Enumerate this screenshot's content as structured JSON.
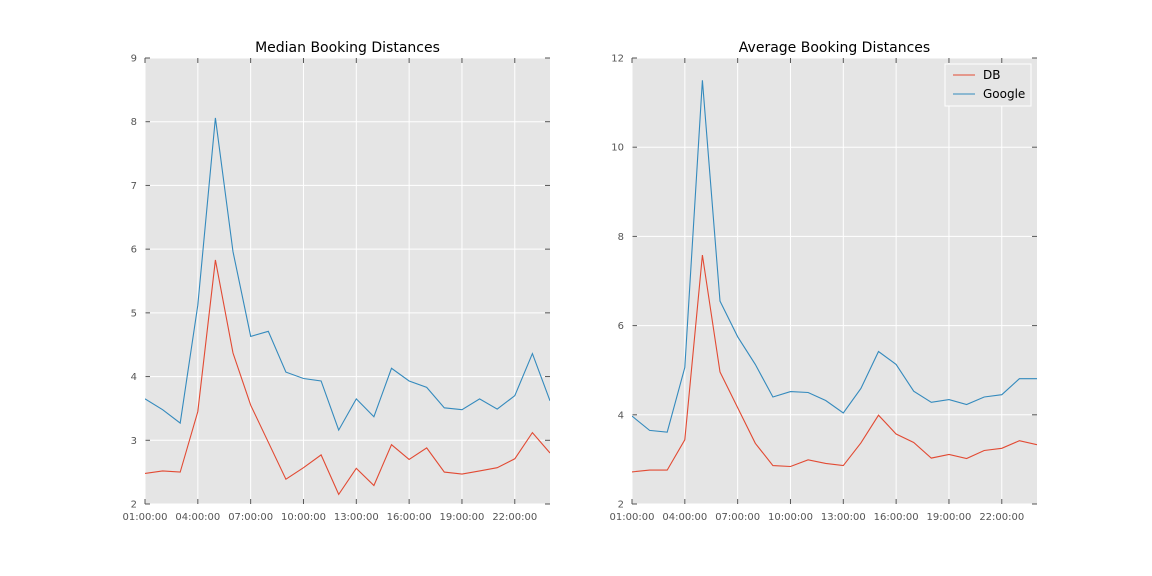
{
  "chart_data": [
    {
      "type": "line",
      "title": "Median Booking Distances",
      "xlabel": "",
      "ylabel": "",
      "x": [
        "01:00:00",
        "02:00:00",
        "03:00:00",
        "04:00:00",
        "05:00:00",
        "06:00:00",
        "07:00:00",
        "08:00:00",
        "09:00:00",
        "10:00:00",
        "11:00:00",
        "12:00:00",
        "13:00:00",
        "14:00:00",
        "15:00:00",
        "16:00:00",
        "17:00:00",
        "18:00:00",
        "19:00:00",
        "20:00:00",
        "21:00:00",
        "22:00:00",
        "23:00:00",
        "24:00:00"
      ],
      "xticks": [
        "01:00:00",
        "04:00:00",
        "07:00:00",
        "10:00:00",
        "13:00:00",
        "16:00:00",
        "19:00:00",
        "22:00:00"
      ],
      "xlim_hours": [
        1,
        24
      ],
      "ylim": [
        2,
        9
      ],
      "yticks": [
        "2",
        "3",
        "4",
        "5",
        "6",
        "7",
        "8",
        "9"
      ],
      "grid": true,
      "legend": "none",
      "series": [
        {
          "name": "DB",
          "color": "#E24A33",
          "values": [
            2.48,
            2.52,
            2.5,
            3.45,
            5.83,
            4.37,
            3.55,
            2.97,
            2.39,
            2.57,
            2.77,
            2.15,
            2.56,
            2.29,
            2.93,
            2.7,
            2.88,
            2.5,
            2.47,
            2.52,
            2.57,
            2.71,
            3.12,
            2.8
          ]
        },
        {
          "name": "Google",
          "color": "#348ABD",
          "values": [
            3.65,
            3.48,
            3.27,
            5.12,
            8.06,
            5.96,
            4.63,
            4.71,
            4.07,
            3.97,
            3.93,
            3.16,
            3.65,
            3.37,
            4.13,
            3.93,
            3.83,
            3.51,
            3.48,
            3.65,
            3.49,
            3.7,
            4.36,
            3.62
          ]
        }
      ]
    },
    {
      "type": "line",
      "title": "Average Booking Distances",
      "xlabel": "",
      "ylabel": "",
      "x": [
        "01:00:00",
        "02:00:00",
        "03:00:00",
        "04:00:00",
        "05:00:00",
        "06:00:00",
        "07:00:00",
        "08:00:00",
        "09:00:00",
        "10:00:00",
        "11:00:00",
        "12:00:00",
        "13:00:00",
        "14:00:00",
        "15:00:00",
        "16:00:00",
        "17:00:00",
        "18:00:00",
        "19:00:00",
        "20:00:00",
        "21:00:00",
        "22:00:00",
        "23:00:00",
        "24:00:00"
      ],
      "xticks": [
        "01:00:00",
        "04:00:00",
        "07:00:00",
        "10:00:00",
        "13:00:00",
        "16:00:00",
        "19:00:00",
        "22:00:00"
      ],
      "xlim_hours": [
        1,
        24
      ],
      "ylim": [
        2,
        12
      ],
      "yticks": [
        "2",
        "4",
        "6",
        "8",
        "10",
        "12"
      ],
      "grid": true,
      "legend": "top-right",
      "series": [
        {
          "name": "DB",
          "color": "#E24A33",
          "values": [
            2.72,
            2.76,
            2.76,
            3.44,
            7.58,
            4.96,
            4.16,
            3.36,
            2.86,
            2.84,
            2.99,
            2.91,
            2.86,
            3.37,
            3.99,
            3.57,
            3.38,
            3.03,
            3.11,
            3.02,
            3.2,
            3.25,
            3.42,
            3.33
          ]
        },
        {
          "name": "Google",
          "color": "#348ABD",
          "values": [
            3.97,
            3.65,
            3.61,
            5.06,
            11.5,
            6.55,
            5.75,
            5.13,
            4.4,
            4.52,
            4.5,
            4.32,
            4.04,
            4.59,
            5.42,
            5.13,
            4.53,
            4.28,
            4.34,
            4.23,
            4.4,
            4.45,
            4.81,
            4.81
          ]
        }
      ]
    }
  ]
}
